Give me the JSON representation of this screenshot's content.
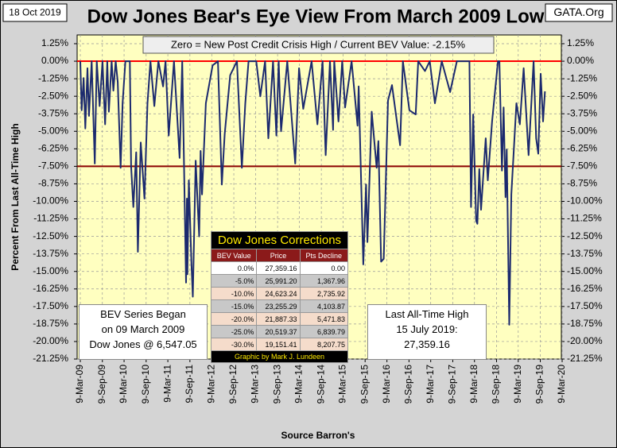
{
  "chart_data": {
    "type": "line",
    "date_label": "18 Oct 2019",
    "title": "Dow Jones Bear's Eye View From March 2009 Low",
    "source_tag": "GATA.Org",
    "banner": "Zero = New Post Credit Crisis High / Current BEV Value:  -2.15%",
    "y_label": "Percent From Last All-Time High",
    "x_label": "Source Barron's",
    "color": "#1c2a6e",
    "grid": true,
    "hlines": [
      {
        "value": 0,
        "color": "#ff0000"
      },
      {
        "value": -7.5,
        "color": "#8b0000"
      }
    ],
    "ylim": [
      -21.25,
      1.25
    ],
    "yticks": [
      {
        "value": 1.25,
        "label": "1.25%"
      },
      {
        "value": 0,
        "label": "0.00%"
      },
      {
        "value": -1.25,
        "label": "-1.25%"
      },
      {
        "value": -2.5,
        "label": "-2.50%"
      },
      {
        "value": -3.75,
        "label": "-3.75%"
      },
      {
        "value": -5,
        "label": "-5.00%"
      },
      {
        "value": -6.25,
        "label": "-6.25%"
      },
      {
        "value": -7.5,
        "label": "-7.50%"
      },
      {
        "value": -8.75,
        "label": "-8.75%"
      },
      {
        "value": -10,
        "label": "-10.00%"
      },
      {
        "value": -11.25,
        "label": "-11.25%"
      },
      {
        "value": -12.5,
        "label": "-12.50%"
      },
      {
        "value": -13.75,
        "label": "-13.75%"
      },
      {
        "value": -15,
        "label": "-15.00%"
      },
      {
        "value": -16.25,
        "label": "-16.25%"
      },
      {
        "value": -17.5,
        "label": "-17.50%"
      },
      {
        "value": -18.75,
        "label": "-18.75%"
      },
      {
        "value": -20,
        "label": "-20.00%"
      },
      {
        "value": -21.25,
        "label": "-21.25%"
      }
    ],
    "xlim": [
      "2009-03-09",
      "2020-03-09"
    ],
    "xticks": [
      {
        "value": "2009-03-09",
        "label": "9-Mar-09"
      },
      {
        "value": "2009-09-09",
        "label": "9-Sep-09"
      },
      {
        "value": "2010-03-09",
        "label": "9-Mar-10"
      },
      {
        "value": "2010-09-09",
        "label": "9-Sep-10"
      },
      {
        "value": "2011-03-09",
        "label": "9-Mar-11"
      },
      {
        "value": "2011-09-09",
        "label": "9-Sep-11"
      },
      {
        "value": "2012-03-09",
        "label": "9-Mar-12"
      },
      {
        "value": "2012-09-09",
        "label": "9-Sep-12"
      },
      {
        "value": "2013-03-09",
        "label": "9-Mar-13"
      },
      {
        "value": "2013-09-09",
        "label": "9-Sep-13"
      },
      {
        "value": "2014-03-09",
        "label": "9-Mar-14"
      },
      {
        "value": "2014-09-09",
        "label": "9-Sep-14"
      },
      {
        "value": "2015-03-09",
        "label": "9-Mar-15"
      },
      {
        "value": "2015-09-09",
        "label": "9-Sep-15"
      },
      {
        "value": "2016-03-09",
        "label": "9-Mar-16"
      },
      {
        "value": "2016-09-09",
        "label": "9-Sep-16"
      },
      {
        "value": "2017-03-09",
        "label": "9-Mar-17"
      },
      {
        "value": "2017-09-09",
        "label": "9-Sep-17"
      },
      {
        "value": "2018-03-09",
        "label": "9-Mar-18"
      },
      {
        "value": "2018-09-09",
        "label": "9-Sep-18"
      },
      {
        "value": "2019-03-09",
        "label": "9-Mar-19"
      },
      {
        "value": "2019-09-09",
        "label": "9-Sep-19"
      },
      {
        "value": "2020-03-09",
        "label": "9-Mar-20"
      }
    ],
    "x": [
      "2009-03-09",
      "2009-03-20",
      "2009-04-06",
      "2009-04-20",
      "2009-05-08",
      "2009-05-20",
      "2009-06-12",
      "2009-07-08",
      "2009-07-24",
      "2009-08-17",
      "2009-09-10",
      "2009-10-02",
      "2009-10-20",
      "2009-11-02",
      "2009-11-25",
      "2009-12-10",
      "2009-12-29",
      "2010-01-15",
      "2010-02-08",
      "2010-02-25",
      "2010-03-20",
      "2010-04-26",
      "2010-05-07",
      "2010-05-25",
      "2010-06-18",
      "2010-07-02",
      "2010-07-26",
      "2010-08-26",
      "2010-09-20",
      "2010-10-15",
      "2010-11-16",
      "2010-12-20",
      "2011-01-28",
      "2011-02-18",
      "2011-03-16",
      "2011-04-29",
      "2011-06-15",
      "2011-07-07",
      "2011-08-08",
      "2011-08-15",
      "2011-08-19",
      "2011-08-31",
      "2011-09-22",
      "2011-10-03",
      "2011-10-27",
      "2011-11-25",
      "2011-12-07",
      "2011-12-19",
      "2012-01-20",
      "2012-03-16",
      "2012-04-30",
      "2012-06-01",
      "2012-06-25",
      "2012-08-10",
      "2012-10-05",
      "2012-11-15",
      "2012-12-14",
      "2013-01-10",
      "2013-03-15",
      "2013-04-18",
      "2013-05-28",
      "2013-06-24",
      "2013-08-02",
      "2013-08-30",
      "2013-09-18",
      "2013-10-08",
      "2013-11-29",
      "2014-02-03",
      "2014-03-07",
      "2014-04-11",
      "2014-06-20",
      "2014-08-07",
      "2014-09-19",
      "2014-10-15",
      "2014-11-20",
      "2014-12-16",
      "2014-12-26",
      "2015-01-30",
      "2015-03-02",
      "2015-03-26",
      "2015-05-19",
      "2015-07-08",
      "2015-07-17",
      "2015-08-25",
      "2015-09-17",
      "2015-09-28",
      "2015-11-03",
      "2015-12-14",
      "2015-12-29",
      "2016-01-20",
      "2016-02-11",
      "2016-03-18",
      "2016-04-20",
      "2016-06-27",
      "2016-07-20",
      "2016-09-12",
      "2016-11-04",
      "2016-11-25",
      "2017-01-20",
      "2017-03-01",
      "2017-04-13",
      "2017-06-09",
      "2017-08-18",
      "2017-10-13",
      "2018-01-26",
      "2018-02-08",
      "2018-02-26",
      "2018-03-23",
      "2018-04-02",
      "2018-04-18",
      "2018-05-03",
      "2018-06-11",
      "2018-06-28",
      "2018-08-03",
      "2018-09-21",
      "2018-10-03",
      "2018-10-24",
      "2018-11-07",
      "2018-11-23",
      "2018-12-03",
      "2018-12-24",
      "2019-01-10",
      "2019-02-22",
      "2019-03-22",
      "2019-04-23",
      "2019-06-03",
      "2019-07-15",
      "2019-08-05",
      "2019-08-23",
      "2019-09-12",
      "2019-10-02",
      "2019-10-18"
    ],
    "values": [
      0,
      -3.5,
      -1.2,
      -4.8,
      -0.5,
      -3.9,
      0,
      -7.3,
      0,
      -3.2,
      0,
      -4.5,
      0,
      -3.6,
      0,
      -2.1,
      0,
      -1.5,
      -7.6,
      -3,
      0,
      0,
      -7.5,
      -10.4,
      -6.5,
      -13.6,
      -5.8,
      -9.8,
      -3,
      0,
      -3.2,
      0,
      -1.8,
      0,
      -5.3,
      0,
      -6.9,
      0,
      -15.8,
      -9.8,
      -15.2,
      -8.5,
      -14.5,
      -16.8,
      -7.1,
      -12.5,
      -6.4,
      -9.5,
      -3,
      -0.3,
      0,
      -8.8,
      -5.2,
      -1,
      0,
      -7.6,
      -3,
      0,
      0,
      -2.5,
      0,
      -5.5,
      0,
      -5.3,
      0,
      -5,
      0,
      -7.3,
      -0.5,
      -3.4,
      0,
      -4.5,
      0,
      -6.7,
      0,
      -4.9,
      0,
      -4.3,
      0,
      -3.3,
      0,
      -4.6,
      -1.8,
      -14.5,
      -8.8,
      -12.9,
      -3.6,
      -7.6,
      -5.7,
      -14.3,
      -14.1,
      -2.8,
      -1.7,
      -6,
      0,
      -3.5,
      -3.8,
      0,
      -0.7,
      0,
      -3,
      0,
      -2.2,
      0,
      0,
      -10.4,
      -3.8,
      -11.4,
      -11.6,
      -7.7,
      -10.6,
      -5.5,
      -8.5,
      -4.3,
      0,
      0,
      -7.8,
      -3.3,
      -9.7,
      -6.3,
      -18.8,
      -9.5,
      -3,
      -4.5,
      -0.5,
      -6.7,
      0,
      -5.5,
      -6.6,
      -0.9,
      -4.3,
      -2.15
    ],
    "notes": [
      {
        "lines": [
          "BEV Series Began",
          "on 09 March 2009",
          "Dow Jones @ 6,547.05"
        ]
      },
      {
        "lines": [
          "Last All-Time High",
          "15 July 2019:",
          "27,359.16"
        ]
      }
    ],
    "table": {
      "title": "Dow Jones Corrections",
      "columns": [
        "BEV Value",
        "Price",
        "Pts Decline"
      ],
      "rows": [
        [
          "0.0%",
          "27,359.16",
          "0.00"
        ],
        [
          "-5.0%",
          "25,991.20",
          "1,367.96"
        ],
        [
          "-10.0%",
          "24,623.24",
          "2,735.92"
        ],
        [
          "-15.0%",
          "23,255.29",
          "4,103.87"
        ],
        [
          "-20.0%",
          "21,887.33",
          "5,471.83"
        ],
        [
          "-25.0%",
          "20,519.37",
          "6,839.79"
        ],
        [
          "-30.0%",
          "19,151.41",
          "8,207.75"
        ]
      ],
      "footer": "Graphic by Mark J. Lundeen"
    }
  }
}
